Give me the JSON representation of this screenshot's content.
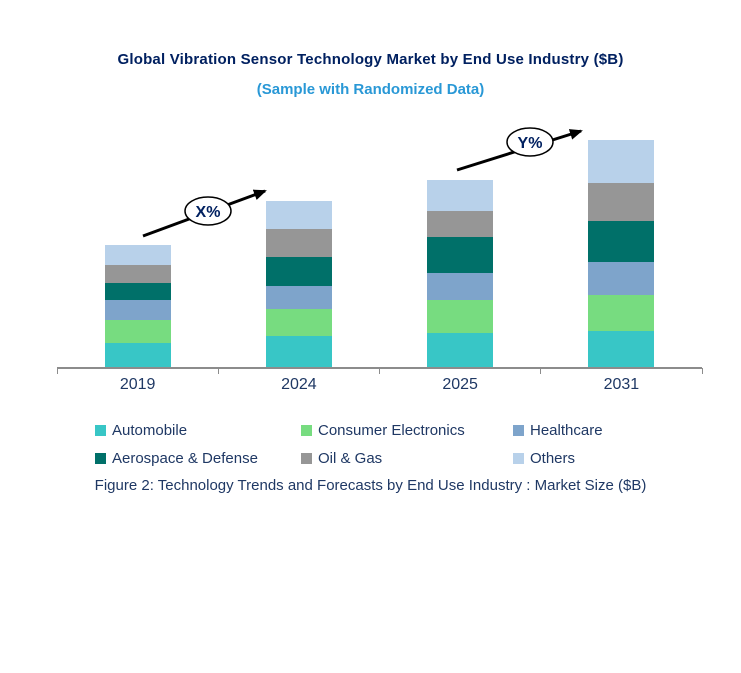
{
  "header": {
    "title": "Global Vibration Sensor Technology Market by End Use Industry ($B)",
    "subtitle": "(Sample with Randomized Data)"
  },
  "chart_data": {
    "type": "bar",
    "stacked": true,
    "title": "Global Vibration Sensor Technology Market by End Use Industry ($B)",
    "subtitle": "(Sample with Randomized Data)",
    "categories": [
      "2019",
      "2024",
      "2025",
      "2031"
    ],
    "series": [
      {
        "name": "Automobile",
        "color": "#38C6C6",
        "values": [
          2.4,
          3.1,
          3.4,
          3.6
        ]
      },
      {
        "name": "Consumer Electronics",
        "color": "#77DC80",
        "values": [
          2.3,
          2.7,
          3.3,
          3.6
        ]
      },
      {
        "name": "Healthcare",
        "color": "#7EA4CB",
        "values": [
          2.0,
          2.3,
          2.7,
          3.3
        ]
      },
      {
        "name": "Aerospace & Defense",
        "color": "#007069",
        "values": [
          1.7,
          2.9,
          3.6,
          4.1
        ]
      },
      {
        "name": "Oil & Gas",
        "color": "#969696",
        "values": [
          1.8,
          2.8,
          2.6,
          3.8
        ]
      },
      {
        "name": "Others",
        "color": "#B8D1EA",
        "values": [
          2.0,
          2.8,
          3.1,
          4.3
        ]
      }
    ],
    "totals": [
      12.2,
      16.6,
      18.7,
      22.7
    ],
    "unit": "$B",
    "value_axis_visible": false,
    "value_note": "no numeric y-axis shown; values estimated in $B from relative bar heights",
    "grid": "off",
    "legend_position": "bottom",
    "xlabel": "",
    "ylabel": "",
    "annotations": [
      {
        "label": "X%",
        "between": [
          "2019",
          "2024"
        ]
      },
      {
        "label": "Y%",
        "between": [
          "2025",
          "2031"
        ]
      }
    ]
  },
  "caption": "Figure 2: Technology  Trends  and Forecasts by End Use Industry  : Market Size ($B)",
  "colors": {
    "title": "#002060",
    "subtitle": "#2998D6",
    "text": "#1F3864",
    "axis": "#8C8C8C",
    "annotation_arrow": "#000000"
  }
}
